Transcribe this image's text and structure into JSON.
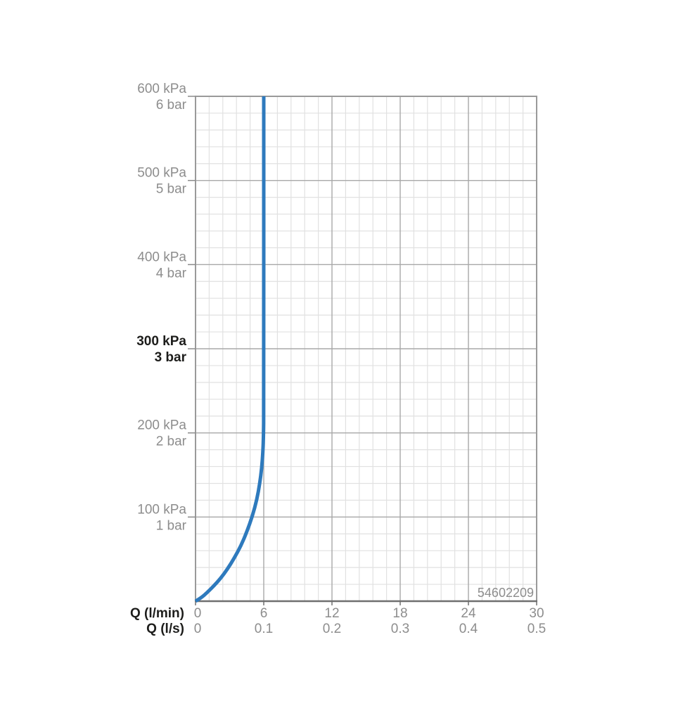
{
  "colors": {
    "background": "#ffffff",
    "curve": "#2e7abd",
    "grid_minor": "#e1e1e1",
    "grid_major": "#a8a8a8",
    "border": "#9a9a9a",
    "axis": "#6f6f6f",
    "tick": "#8a8a8a",
    "text_muted": "#8d8d8d",
    "text_strong": "#1d1d1b"
  },
  "chart_data": {
    "type": "line",
    "title": "",
    "product_code": "54602209",
    "grid": true,
    "legend": false,
    "x_axis": {
      "range_lmin": [
        0,
        30
      ],
      "major_step_lmin": 6,
      "minor_per_major": 5,
      "rows": [
        {
          "label": "Q (l/min)",
          "ticks": [
            "0",
            "6",
            "12",
            "18",
            "24",
            "30"
          ]
        },
        {
          "label": "Q (l/s)",
          "ticks": [
            "0",
            "0.1",
            "0.2",
            "0.3",
            "0.4",
            "0.5"
          ]
        }
      ]
    },
    "y_axis": {
      "range_kpa": [
        0,
        600
      ],
      "major_step_kpa": 100,
      "minor_per_major": 5,
      "ticks": [
        {
          "value": 600,
          "kpa": "600 kPa",
          "bar": "6 bar",
          "bold": false
        },
        {
          "value": 500,
          "kpa": "500 kPa",
          "bar": "5 bar",
          "bold": false
        },
        {
          "value": 400,
          "kpa": "400 kPa",
          "bar": "4 bar",
          "bold": false
        },
        {
          "value": 300,
          "kpa": "300 kPa",
          "bar": "3 bar",
          "bold": true
        },
        {
          "value": 200,
          "kpa": "200 kPa",
          "bar": "2 bar",
          "bold": false
        },
        {
          "value": 100,
          "kpa": "100 kPa",
          "bar": "1 bar",
          "bold": false
        }
      ]
    },
    "series": [
      {
        "name": "flow-pressure-curve",
        "color": "#2e7abd",
        "points_lmin_kpa": [
          [
            0,
            0
          ],
          [
            0.5,
            4
          ],
          [
            1.0,
            10
          ],
          [
            1.6,
            18
          ],
          [
            2.2,
            27
          ],
          [
            2.8,
            38
          ],
          [
            3.4,
            51
          ],
          [
            4.0,
            66
          ],
          [
            4.5,
            82
          ],
          [
            5.0,
            101
          ],
          [
            5.4,
            121
          ],
          [
            5.65,
            140
          ],
          [
            5.82,
            158
          ],
          [
            5.93,
            178
          ],
          [
            5.98,
            198
          ],
          [
            6.0,
            225
          ],
          [
            6.0,
            600
          ]
        ]
      }
    ]
  }
}
